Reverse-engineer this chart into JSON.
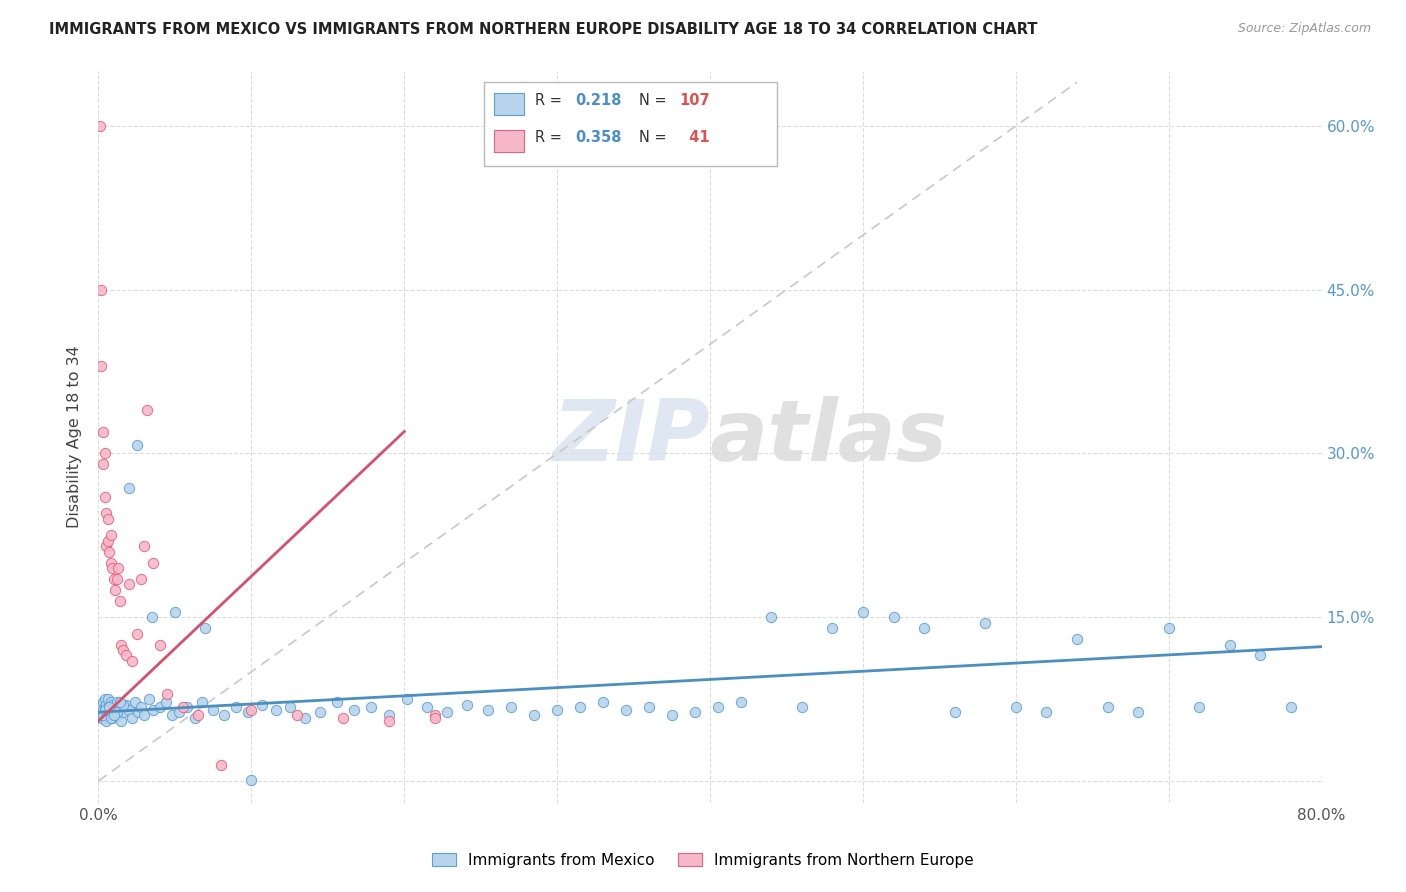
{
  "title": "IMMIGRANTS FROM MEXICO VS IMMIGRANTS FROM NORTHERN EUROPE DISABILITY AGE 18 TO 34 CORRELATION CHART",
  "source": "Source: ZipAtlas.com",
  "ylabel_label": "Disability Age 18 to 34",
  "xlim": [
    0.0,
    0.8
  ],
  "ylim": [
    -0.02,
    0.65
  ],
  "xticks": [
    0.0,
    0.1,
    0.2,
    0.3,
    0.4,
    0.5,
    0.6,
    0.7,
    0.8
  ],
  "yticks": [
    0.0,
    0.15,
    0.3,
    0.45,
    0.6
  ],
  "ytick_labels_right": [
    "",
    "15.0%",
    "30.0%",
    "45.0%",
    "60.0%"
  ],
  "blue_fill": "#b8d4ed",
  "pink_fill": "#f5b8ca",
  "blue_edge": "#5b9fd4",
  "pink_edge": "#e8607a",
  "blue_line": "#4a8fc0",
  "pink_line": "#d94f6e",
  "diagonal_color": "#c8c8c8",
  "R_blue": 0.218,
  "N_blue": 107,
  "R_pink": 0.358,
  "N_pink": 41,
  "watermark_zip": "ZIP",
  "watermark_atlas": "atlas",
  "blue_line_x0": 0.0,
  "blue_line_y0": 0.063,
  "blue_line_x1": 0.8,
  "blue_line_y1": 0.123,
  "pink_line_x0": 0.0,
  "pink_line_y0": 0.055,
  "pink_line_x1": 0.2,
  "pink_line_y1": 0.32,
  "blue_scatter_x": [
    0.001,
    0.002,
    0.002,
    0.003,
    0.003,
    0.003,
    0.004,
    0.004,
    0.004,
    0.005,
    0.005,
    0.005,
    0.006,
    0.006,
    0.006,
    0.007,
    0.007,
    0.008,
    0.008,
    0.009,
    0.009,
    0.01,
    0.01,
    0.011,
    0.012,
    0.013,
    0.014,
    0.015,
    0.016,
    0.018,
    0.02,
    0.022,
    0.024,
    0.026,
    0.028,
    0.03,
    0.033,
    0.036,
    0.04,
    0.044,
    0.048,
    0.053,
    0.058,
    0.063,
    0.068,
    0.075,
    0.082,
    0.09,
    0.098,
    0.107,
    0.116,
    0.125,
    0.135,
    0.145,
    0.156,
    0.167,
    0.178,
    0.19,
    0.202,
    0.215,
    0.228,
    0.241,
    0.255,
    0.27,
    0.285,
    0.3,
    0.315,
    0.33,
    0.345,
    0.36,
    0.375,
    0.39,
    0.405,
    0.42,
    0.44,
    0.46,
    0.48,
    0.5,
    0.52,
    0.54,
    0.56,
    0.58,
    0.6,
    0.62,
    0.64,
    0.66,
    0.68,
    0.7,
    0.72,
    0.74,
    0.76,
    0.78,
    0.003,
    0.005,
    0.008,
    0.012,
    0.016,
    0.004,
    0.007,
    0.01,
    0.014,
    0.02,
    0.025,
    0.035,
    0.05,
    0.07,
    0.1
  ],
  "blue_scatter_y": [
    0.063,
    0.068,
    0.058,
    0.072,
    0.065,
    0.06,
    0.075,
    0.058,
    0.068,
    0.063,
    0.07,
    0.055,
    0.068,
    0.062,
    0.075,
    0.06,
    0.068,
    0.065,
    0.072,
    0.058,
    0.07,
    0.063,
    0.068,
    0.065,
    0.072,
    0.06,
    0.068,
    0.055,
    0.063,
    0.07,
    0.065,
    0.058,
    0.072,
    0.063,
    0.068,
    0.06,
    0.075,
    0.065,
    0.068,
    0.072,
    0.06,
    0.063,
    0.068,
    0.058,
    0.072,
    0.065,
    0.06,
    0.068,
    0.063,
    0.07,
    0.065,
    0.068,
    0.058,
    0.063,
    0.072,
    0.065,
    0.068,
    0.06,
    0.075,
    0.068,
    0.063,
    0.07,
    0.065,
    0.068,
    0.06,
    0.065,
    0.068,
    0.072,
    0.065,
    0.068,
    0.06,
    0.063,
    0.068,
    0.072,
    0.15,
    0.068,
    0.14,
    0.155,
    0.15,
    0.14,
    0.063,
    0.145,
    0.068,
    0.063,
    0.13,
    0.068,
    0.063,
    0.14,
    0.068,
    0.125,
    0.115,
    0.068,
    0.06,
    0.065,
    0.058,
    0.063,
    0.07,
    0.065,
    0.068,
    0.06,
    0.072,
    0.268,
    0.308,
    0.15,
    0.155,
    0.14,
    0.001
  ],
  "pink_scatter_x": [
    0.001,
    0.002,
    0.002,
    0.003,
    0.003,
    0.004,
    0.004,
    0.005,
    0.005,
    0.006,
    0.006,
    0.007,
    0.008,
    0.008,
    0.009,
    0.01,
    0.011,
    0.012,
    0.013,
    0.014,
    0.015,
    0.016,
    0.018,
    0.02,
    0.022,
    0.025,
    0.028,
    0.03,
    0.032,
    0.036,
    0.04,
    0.045,
    0.055,
    0.065,
    0.08,
    0.1,
    0.13,
    0.16,
    0.19,
    0.22,
    0.22
  ],
  "pink_scatter_y": [
    0.6,
    0.38,
    0.45,
    0.32,
    0.29,
    0.3,
    0.26,
    0.245,
    0.215,
    0.24,
    0.22,
    0.21,
    0.225,
    0.2,
    0.195,
    0.185,
    0.175,
    0.185,
    0.195,
    0.165,
    0.125,
    0.12,
    0.115,
    0.18,
    0.11,
    0.135,
    0.185,
    0.215,
    0.34,
    0.2,
    0.125,
    0.08,
    0.068,
    0.06,
    0.015,
    0.065,
    0.06,
    0.058,
    0.055,
    0.06,
    0.058
  ]
}
